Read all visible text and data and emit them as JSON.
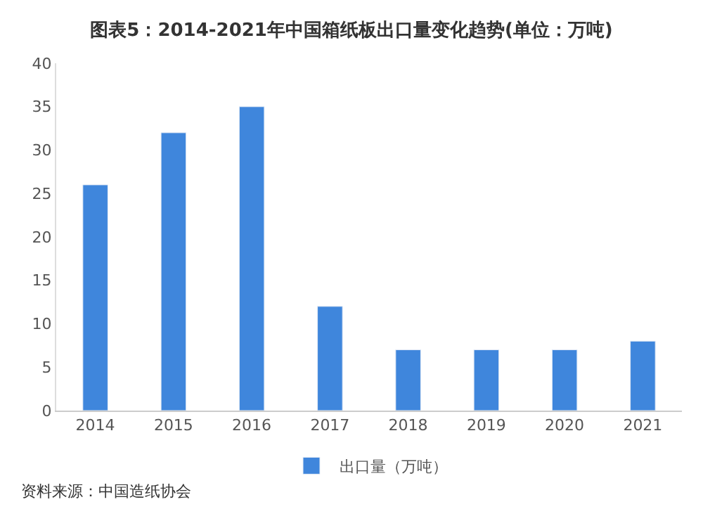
{
  "chart_data": {
    "type": "bar",
    "title": "图表5：2014-2021年中国箱纸板出口量变化趋势(单位：万吨)",
    "categories": [
      "2014",
      "2015",
      "2016",
      "2017",
      "2018",
      "2019",
      "2020",
      "2021"
    ],
    "series": [
      {
        "name": "出口量（万吨）",
        "color": "#3f86dc",
        "values": [
          26,
          32,
          35,
          12,
          7,
          7,
          7,
          8
        ]
      }
    ],
    "ylim": [
      0,
      40
    ],
    "yticks": [
      0,
      5,
      10,
      15,
      20,
      25,
      30,
      35,
      40
    ],
    "grid": false,
    "legend": "bottom",
    "annotations": [
      "资料来源：中国造纸协会"
    ]
  }
}
